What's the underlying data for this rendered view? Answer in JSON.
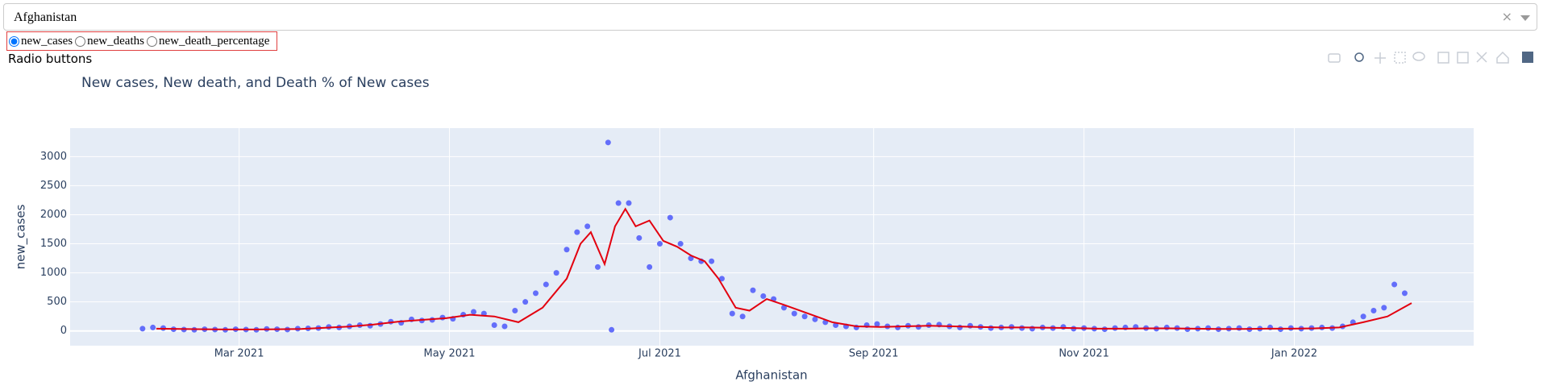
{
  "dropdown": {
    "value": "Afghanistan"
  },
  "radio": {
    "options": [
      "new_cases",
      "new_deaths",
      "new_death_percentage"
    ],
    "selected": 0,
    "label": "Radio buttons"
  },
  "chart_data": {
    "type": "scatter",
    "title": "New cases, New death, and Death % of New cases",
    "xlabel": "Afghanistan",
    "ylabel": "new_cases",
    "xlim": [
      10,
      417
    ],
    "ylim": [
      -253,
      3490
    ],
    "xticks": [
      {
        "value": 59,
        "label": "Mar 2021"
      },
      {
        "value": 120,
        "label": "May 2021"
      },
      {
        "value": 181,
        "label": "Jul 2021"
      },
      {
        "value": 243,
        "label": "Sep 2021"
      },
      {
        "value": 304,
        "label": "Nov 2021"
      },
      {
        "value": 365,
        "label": "Jan 2022"
      }
    ],
    "yticks": [
      0,
      500,
      1000,
      1500,
      2000,
      2500,
      3000
    ],
    "grid": true,
    "series": [
      {
        "mode": "markers",
        "color": "#636efa",
        "x": [
          31,
          34,
          37,
          40,
          43,
          46,
          49,
          52,
          55,
          58,
          61,
          64,
          67,
          70,
          73,
          76,
          79,
          82,
          85,
          88,
          91,
          94,
          97,
          100,
          103,
          106,
          109,
          112,
          115,
          118,
          121,
          124,
          127,
          130,
          133,
          136,
          139,
          142,
          145,
          148,
          151,
          154,
          157,
          160,
          163,
          166,
          167,
          169,
          172,
          175,
          178,
          181,
          184,
          187,
          190,
          193,
          196,
          199,
          202,
          205,
          208,
          211,
          214,
          217,
          220,
          223,
          226,
          229,
          232,
          235,
          238,
          241,
          244,
          247,
          250,
          253,
          256,
          259,
          262,
          265,
          268,
          271,
          274,
          277,
          280,
          283,
          286,
          289,
          292,
          295,
          298,
          301,
          304,
          307,
          310,
          313,
          316,
          319,
          322,
          325,
          328,
          331,
          334,
          337,
          340,
          343,
          346,
          349,
          352,
          355,
          358,
          361,
          364,
          367,
          370,
          373,
          376,
          379,
          382,
          385,
          388,
          391,
          394,
          397
        ],
        "values": [
          40,
          60,
          50,
          30,
          25,
          20,
          30,
          25,
          20,
          30,
          25,
          20,
          35,
          30,
          25,
          40,
          45,
          50,
          70,
          60,
          80,
          100,
          90,
          120,
          160,
          140,
          200,
          180,
          190,
          230,
          210,
          280,
          330,
          300,
          100,
          80,
          350,
          500,
          650,
          800,
          1000,
          1400,
          1700,
          1800,
          1100,
          3243,
          20,
          2200,
          2200,
          1600,
          1100,
          1500,
          1950,
          1500,
          1250,
          1200,
          1200,
          900,
          300,
          250,
          700,
          600,
          550,
          400,
          300,
          250,
          200,
          150,
          100,
          80,
          60,
          100,
          120,
          80,
          60,
          90,
          70,
          100,
          110,
          80,
          60,
          90,
          70,
          50,
          60,
          70,
          50,
          40,
          60,
          50,
          70,
          40,
          50,
          40,
          30,
          50,
          60,
          70,
          50,
          40,
          60,
          50,
          30,
          40,
          50,
          30,
          40,
          50,
          30,
          40,
          60,
          30,
          50,
          40,
          50,
          60,
          50,
          80,
          150,
          250,
          350,
          400,
          800,
          650
        ]
      },
      {
        "mode": "lines",
        "color": "#e3000f",
        "x": [
          35,
          42,
          49,
          56,
          63,
          70,
          77,
          84,
          91,
          98,
          105,
          112,
          119,
          126,
          133,
          140,
          147,
          154,
          158,
          161,
          165,
          168,
          171,
          174,
          178,
          182,
          186,
          190,
          194,
          198,
          203,
          207,
          212,
          217,
          224,
          231,
          238,
          245,
          252,
          259,
          266,
          273,
          280,
          287,
          294,
          301,
          308,
          315,
          322,
          329,
          336,
          343,
          350,
          357,
          364,
          371,
          378,
          385,
          392,
          399
        ],
        "values": [
          40,
          35,
          30,
          25,
          25,
          30,
          35,
          55,
          75,
          110,
          160,
          190,
          220,
          280,
          250,
          150,
          400,
          900,
          1500,
          1700,
          1150,
          1800,
          2100,
          1800,
          1900,
          1550,
          1450,
          1300,
          1200,
          900,
          400,
          350,
          550,
          450,
          300,
          150,
          80,
          70,
          80,
          90,
          80,
          70,
          60,
          60,
          55,
          50,
          40,
          40,
          45,
          45,
          40,
          35,
          35,
          40,
          40,
          45,
          60,
          150,
          250,
          480
        ]
      }
    ]
  }
}
